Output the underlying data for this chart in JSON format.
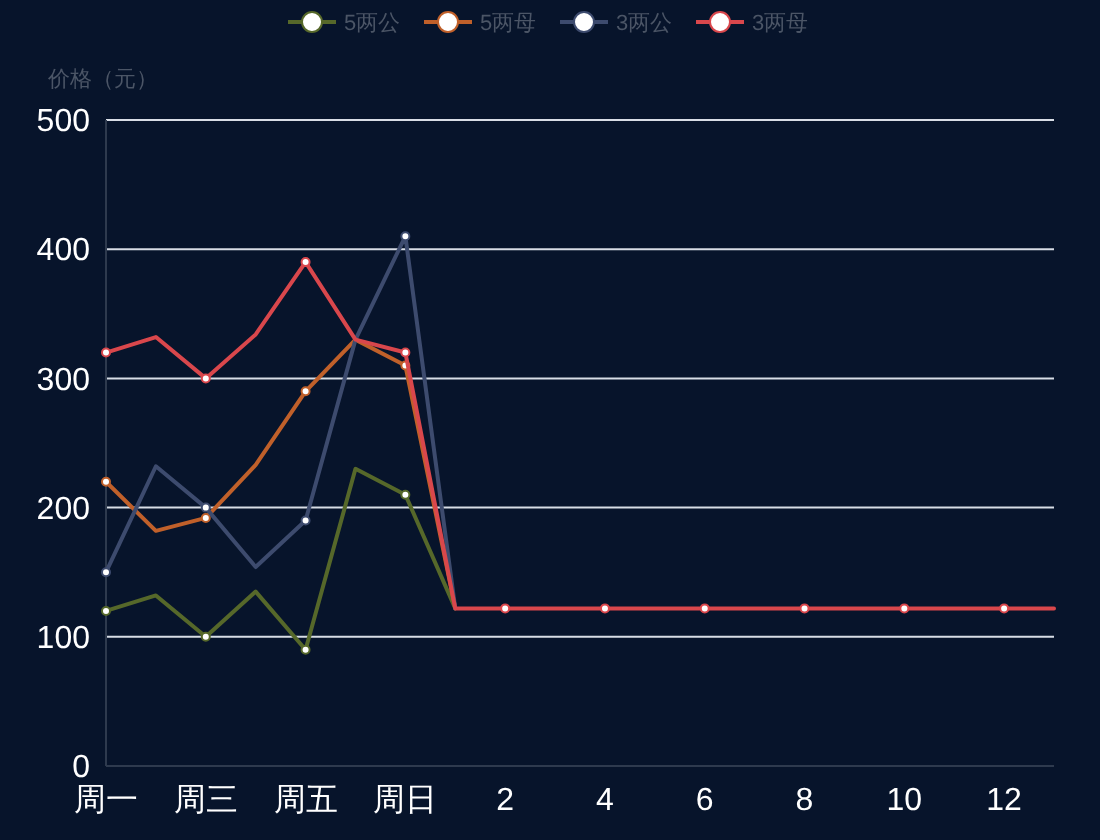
{
  "chart_data": {
    "type": "line",
    "ylabel": "价格（元）",
    "categories": [
      "周一",
      null,
      "周三",
      null,
      "周五",
      null,
      "周日",
      null,
      "2",
      null,
      "4",
      null,
      "6",
      null,
      "8",
      null,
      "10",
      null,
      "12",
      null
    ],
    "series": [
      {
        "name": "5两公",
        "color": "#56682a",
        "values": [
          120,
          132,
          100,
          135,
          90,
          230,
          210,
          122,
          null,
          null,
          null,
          null,
          null,
          null,
          null,
          null,
          null,
          null,
          null,
          null
        ]
      },
      {
        "name": "5两母",
        "color": "#c0602a",
        "values": [
          220,
          182,
          192,
          233,
          290,
          330,
          310,
          122,
          null,
          null,
          null,
          null,
          null,
          null,
          null,
          null,
          null,
          null,
          null,
          null
        ]
      },
      {
        "name": "3两公",
        "color": "#3d4b6e",
        "values": [
          150,
          232,
          200,
          154,
          190,
          330,
          410,
          122,
          null,
          null,
          null,
          null,
          null,
          null,
          null,
          null,
          null,
          null,
          null,
          null
        ]
      },
      {
        "name": "3两母",
        "color": "#d9474c",
        "values": [
          320,
          332,
          300,
          334,
          390,
          330,
          320,
          122,
          122,
          122,
          122,
          122,
          122,
          122,
          122,
          122,
          122,
          122,
          122,
          122
        ]
      }
    ],
    "ylim": [
      0,
      500
    ],
    "yticks": [
      0,
      100,
      200,
      300,
      400,
      500
    ],
    "grid": "y",
    "legend": "top",
    "marker": "circle",
    "line_style": "solid"
  }
}
